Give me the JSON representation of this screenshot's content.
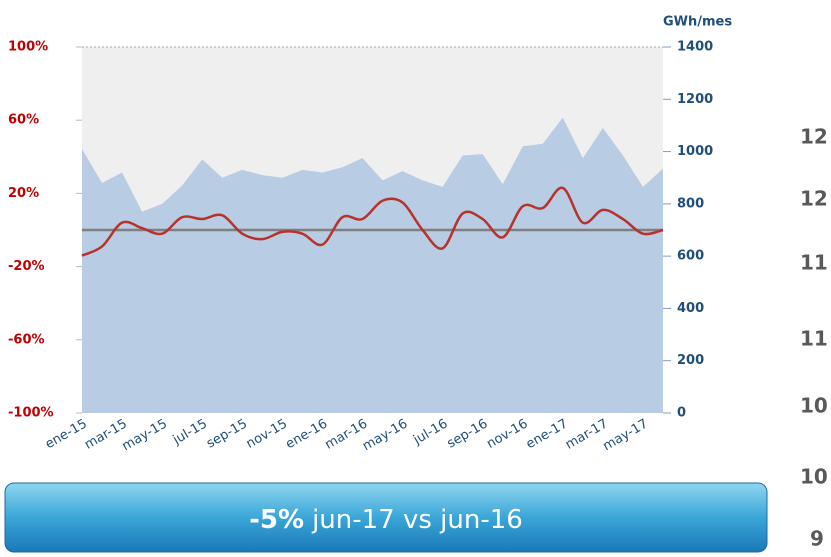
{
  "chart_data": {
    "type": "area_line",
    "y2_label": "GWh/mes",
    "categories": [
      "ene-15",
      null,
      "mar-15",
      null,
      "may-15",
      null,
      "jul-15",
      null,
      "sep-15",
      null,
      "nov-15",
      null,
      "ene-16",
      null,
      "mar-16",
      null,
      "may-16",
      null,
      "jul-16",
      null,
      "sep-16",
      null,
      "nov-16",
      null,
      "ene-17",
      null,
      "mar-17",
      null,
      "may-17",
      null
    ],
    "series": [
      {
        "type": "area",
        "axis": "y2",
        "color": "#b8cce4",
        "values": [
          1010,
          880,
          920,
          770,
          800,
          870,
          970,
          900,
          930,
          910,
          900,
          930,
          920,
          940,
          975,
          890,
          925,
          890,
          865,
          985,
          990,
          875,
          1020,
          1030,
          1130,
          975,
          1090,
          985,
          865,
          935
        ]
      },
      {
        "type": "line",
        "axis": "y",
        "color": "#b8322c",
        "values": [
          -14,
          -9,
          4,
          1,
          -2,
          7,
          6,
          8,
          -2,
          -5,
          -1,
          -2,
          -8,
          7,
          6,
          16,
          15,
          0,
          -10,
          9,
          6,
          -4,
          13,
          12,
          23,
          4,
          11,
          6,
          -2,
          0
        ]
      }
    ],
    "reference_line": 0,
    "ylim": [
      -100,
      100
    ],
    "yticks": [
      {
        "value": -100,
        "label": "-100%"
      },
      {
        "value": -60,
        "label": "-60%"
      },
      {
        "value": -20,
        "label": "-20%"
      },
      {
        "value": 20,
        "label": "20%"
      },
      {
        "value": 60,
        "label": "60%"
      },
      {
        "value": 100,
        "label": "100%"
      }
    ],
    "y2lim": [
      0,
      1400
    ],
    "y2ticks": [
      0,
      200,
      400,
      600,
      800,
      1000,
      1200,
      1400
    ]
  },
  "banner": {
    "highlight": "-5%",
    "text": "jun-17 vs jun-16"
  },
  "right_panel_labels": [
    "12",
    "12",
    "11",
    "11",
    "10",
    "10",
    "9"
  ]
}
